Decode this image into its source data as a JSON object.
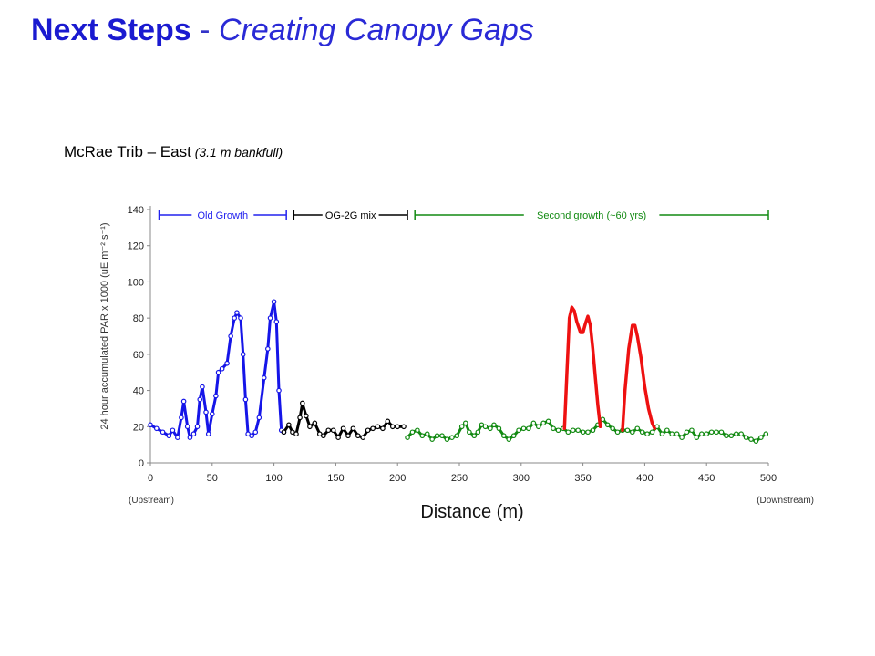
{
  "slide": {
    "title_bold": "Next Steps",
    "title_sep": " - ",
    "title_italic": "Creating Canopy Gaps"
  },
  "chart_data": {
    "type": "line",
    "title_main": "McRae Trib – East",
    "title_sub": " (3.1 m bankfull)",
    "xlabel": "Distance (m)",
    "ylabel": "24 hour accumulated PAR x 1000 (uE m⁻² s⁻¹)",
    "xlim": [
      0,
      500
    ],
    "ylim": [
      0,
      140
    ],
    "x_ticks": [
      0,
      50,
      100,
      150,
      200,
      250,
      300,
      350,
      400,
      450,
      500
    ],
    "y_ticks": [
      0,
      20,
      40,
      60,
      80,
      100,
      120,
      140
    ],
    "x_end_labels": {
      "left": "(Upstream)",
      "right": "(Downstream)"
    },
    "grid": false,
    "annotations": [
      {
        "text": "Old Growth",
        "color": "#2222ee",
        "x_start": 7,
        "x_end": 110
      },
      {
        "text": "OG-2G mix",
        "color": "#000000",
        "x_start": 116,
        "x_end": 208
      },
      {
        "text": "Second growth (~60 yrs)",
        "color": "#128a12",
        "x_start": 214,
        "x_end": 500
      }
    ],
    "series": [
      {
        "color": "#1515e8",
        "markers": true,
        "points": [
          [
            0,
            21
          ],
          [
            5,
            19
          ],
          [
            10,
            17
          ],
          [
            15,
            15
          ],
          [
            18,
            18
          ],
          [
            22,
            14
          ],
          [
            25,
            25
          ],
          [
            27,
            34
          ],
          [
            30,
            20
          ],
          [
            32,
            14
          ],
          [
            35,
            16
          ],
          [
            38,
            20
          ],
          [
            40,
            35
          ],
          [
            42,
            42
          ],
          [
            45,
            28
          ],
          [
            47,
            16
          ],
          [
            50,
            27
          ],
          [
            53,
            37
          ],
          [
            55,
            50
          ],
          [
            58,
            52
          ],
          [
            62,
            55
          ],
          [
            65,
            70
          ],
          [
            68,
            80
          ],
          [
            70,
            83
          ],
          [
            73,
            80
          ],
          [
            75,
            60
          ],
          [
            77,
            35
          ],
          [
            79,
            16
          ],
          [
            82,
            15
          ],
          [
            85,
            17
          ],
          [
            88,
            25
          ],
          [
            92,
            47
          ],
          [
            95,
            63
          ],
          [
            97,
            80
          ],
          [
            100,
            89
          ],
          [
            102,
            78
          ],
          [
            104,
            40
          ],
          [
            106,
            18
          ],
          [
            108,
            17
          ]
        ]
      },
      {
        "color": "#000000",
        "markers": true,
        "points": [
          [
            108,
            17
          ],
          [
            112,
            21
          ],
          [
            115,
            17
          ],
          [
            118,
            16
          ],
          [
            121,
            25
          ],
          [
            123,
            33
          ],
          [
            126,
            26
          ],
          [
            129,
            20
          ],
          [
            133,
            22
          ],
          [
            137,
            16
          ],
          [
            140,
            15
          ],
          [
            144,
            18
          ],
          [
            148,
            18
          ],
          [
            152,
            14
          ],
          [
            156,
            19
          ],
          [
            160,
            15
          ],
          [
            164,
            19
          ],
          [
            168,
            15
          ],
          [
            172,
            14
          ],
          [
            176,
            18
          ],
          [
            180,
            19
          ],
          [
            184,
            20
          ],
          [
            188,
            19
          ],
          [
            192,
            23
          ],
          [
            196,
            20
          ],
          [
            200,
            20
          ],
          [
            205,
            20
          ]
        ]
      },
      {
        "color": "#128a12",
        "markers": true,
        "points": [
          [
            208,
            14
          ],
          [
            212,
            17
          ],
          [
            216,
            18
          ],
          [
            220,
            15
          ],
          [
            224,
            16
          ],
          [
            228,
            13
          ],
          [
            232,
            15
          ],
          [
            236,
            15
          ],
          [
            240,
            13
          ],
          [
            244,
            14
          ],
          [
            248,
            15
          ],
          [
            252,
            20
          ],
          [
            255,
            22
          ],
          [
            258,
            17
          ],
          [
            262,
            15
          ],
          [
            265,
            17
          ],
          [
            268,
            21
          ],
          [
            271,
            20
          ],
          [
            275,
            19
          ],
          [
            278,
            21
          ],
          [
            282,
            19
          ],
          [
            286,
            15
          ],
          [
            290,
            13
          ],
          [
            294,
            15
          ],
          [
            298,
            18
          ],
          [
            302,
            19
          ],
          [
            306,
            19
          ],
          [
            310,
            22
          ],
          [
            314,
            20
          ],
          [
            318,
            22
          ],
          [
            322,
            23
          ],
          [
            326,
            19
          ],
          [
            330,
            18
          ],
          [
            334,
            19
          ],
          [
            338,
            17
          ],
          [
            342,
            18
          ],
          [
            346,
            18
          ],
          [
            350,
            17
          ],
          [
            354,
            17
          ],
          [
            358,
            18
          ],
          [
            362,
            21
          ],
          [
            366,
            24
          ],
          [
            370,
            21
          ],
          [
            374,
            19
          ],
          [
            378,
            17
          ],
          [
            382,
            18
          ],
          [
            386,
            18
          ],
          [
            390,
            17
          ],
          [
            394,
            19
          ],
          [
            398,
            17
          ],
          [
            402,
            16
          ],
          [
            406,
            17
          ],
          [
            410,
            20
          ],
          [
            414,
            16
          ],
          [
            418,
            18
          ],
          [
            422,
            16
          ],
          [
            426,
            16
          ],
          [
            430,
            14
          ],
          [
            434,
            17
          ],
          [
            438,
            18
          ],
          [
            442,
            14
          ],
          [
            446,
            16
          ],
          [
            450,
            16
          ],
          [
            454,
            17
          ],
          [
            458,
            17
          ],
          [
            462,
            17
          ],
          [
            466,
            15
          ],
          [
            470,
            15
          ],
          [
            474,
            16
          ],
          [
            478,
            16
          ],
          [
            482,
            14
          ],
          [
            486,
            13
          ],
          [
            490,
            12
          ],
          [
            494,
            14
          ],
          [
            498,
            16
          ]
        ]
      },
      {
        "color": "#ee1111",
        "markers": false,
        "points": [
          [
            335,
            19
          ],
          [
            337,
            50
          ],
          [
            339,
            80
          ],
          [
            341,
            86
          ],
          [
            343,
            84
          ],
          [
            345,
            78
          ],
          [
            348,
            72
          ],
          [
            350,
            72
          ],
          [
            352,
            77
          ],
          [
            354,
            81
          ],
          [
            356,
            76
          ],
          [
            358,
            63
          ],
          [
            360,
            47
          ],
          [
            362,
            32
          ],
          [
            364,
            20
          ]
        ]
      },
      {
        "color": "#ee1111",
        "markers": false,
        "points": [
          [
            382,
            18
          ],
          [
            384,
            40
          ],
          [
            387,
            63
          ],
          [
            390,
            76
          ],
          [
            392,
            76
          ],
          [
            394,
            70
          ],
          [
            397,
            58
          ],
          [
            400,
            42
          ],
          [
            403,
            30
          ],
          [
            406,
            22
          ],
          [
            408,
            19
          ]
        ]
      }
    ]
  }
}
